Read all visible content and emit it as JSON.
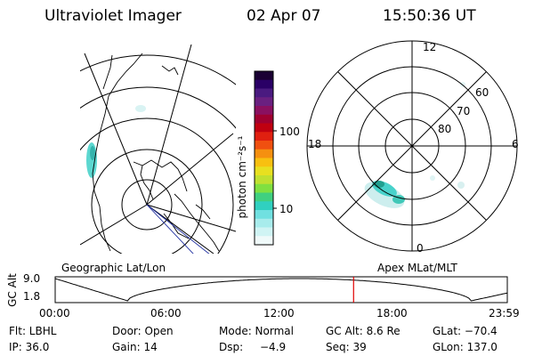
{
  "header": {
    "instrument": "Ultraviolet Imager",
    "date": "02 Apr 07",
    "time": "15:50:36 UT"
  },
  "colorbar": {
    "label": "photon cm⁻²s⁻¹",
    "ticks": [
      "100",
      "10"
    ],
    "colors": [
      "#1a0033",
      "#2a0066",
      "#4a1a80",
      "#6a2080",
      "#8a1060",
      "#a00030",
      "#c00010",
      "#e02010",
      "#f05010",
      "#f59010",
      "#f8c010",
      "#e8e020",
      "#c0e030",
      "#80e040",
      "#40d080",
      "#30d0c0",
      "#70e0e0",
      "#a8ecec",
      "#d0f4f4",
      "#f0fafa"
    ]
  },
  "geo_map": {
    "label": "Geographic Lat/Lon"
  },
  "polar_plot": {
    "label": "Apex MLat/MLT",
    "mlt_labels": [
      "12",
      "18",
      "6",
      "0"
    ],
    "lat_labels": [
      "60",
      "70",
      "80"
    ]
  },
  "timeline": {
    "ylabel": "GC Alt",
    "y_ticks": [
      "9.0",
      "1.8"
    ],
    "x_ticks": [
      "00:00",
      "06:00",
      "12:00",
      "18:00",
      "23:59"
    ],
    "current_time_fraction": 0.66,
    "marker_color": "#e00000"
  },
  "info": {
    "row1": [
      "Flt: LBHL",
      "Door: Open",
      "Mode: Normal",
      "GC Alt: 8.6 Re",
      "GLat: −70.4"
    ],
    "row2": [
      "IP: 36.0",
      "Gain: 14",
      "Dsp:",
      "−4.9",
      "Seq: 39",
      "GLon: 137.0"
    ]
  }
}
